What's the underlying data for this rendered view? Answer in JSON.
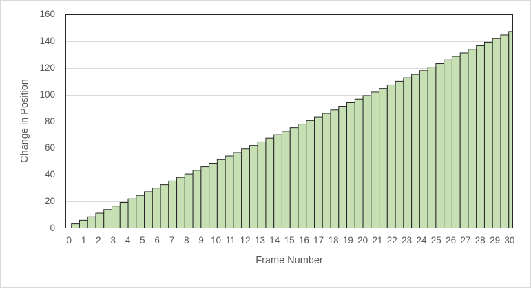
{
  "chart_data": {
    "type": "bar",
    "title": "",
    "xlabel": "Frame Number",
    "ylabel": "Change in Position",
    "x_tick_labels": [
      "0",
      "1",
      "2",
      "3",
      "4",
      "5",
      "6",
      "7",
      "8",
      "9",
      "10",
      "11",
      "12",
      "13",
      "14",
      "15",
      "16",
      "17",
      "18",
      "19",
      "20",
      "21",
      "22",
      "23",
      "24",
      "25",
      "26",
      "27",
      "28",
      "29",
      "30"
    ],
    "y_ticks": [
      0,
      20,
      40,
      60,
      80,
      100,
      120,
      140,
      160
    ],
    "ylim": [
      0,
      160
    ],
    "grid": "horizontal",
    "legend": "none",
    "bar_count": 55,
    "values": [
      3.3,
      6.0,
      8.6,
      11.3,
      14.0,
      16.6,
      19.3,
      22.0,
      24.6,
      27.3,
      30.0,
      32.6,
      35.3,
      38.0,
      40.6,
      43.3,
      46.0,
      48.6,
      51.3,
      54.0,
      56.6,
      59.3,
      61.9,
      64.6,
      67.3,
      69.9,
      72.6,
      75.3,
      77.9,
      80.6,
      83.3,
      85.9,
      88.6,
      91.3,
      93.9,
      96.6,
      99.3,
      101.9,
      104.6,
      107.3,
      109.9,
      112.6,
      115.2,
      117.9,
      120.6,
      123.2,
      125.9,
      128.6,
      131.2,
      133.9,
      136.6,
      139.2,
      141.9,
      144.6,
      147.2
    ],
    "colors": {
      "bar_fill": "#c6e0b4",
      "bar_border": "#262626",
      "gridline": "#d9d9d9",
      "axis": "#262626",
      "text": "#595959",
      "frame_border": "#d9d9d9",
      "background": "#ffffff"
    }
  }
}
